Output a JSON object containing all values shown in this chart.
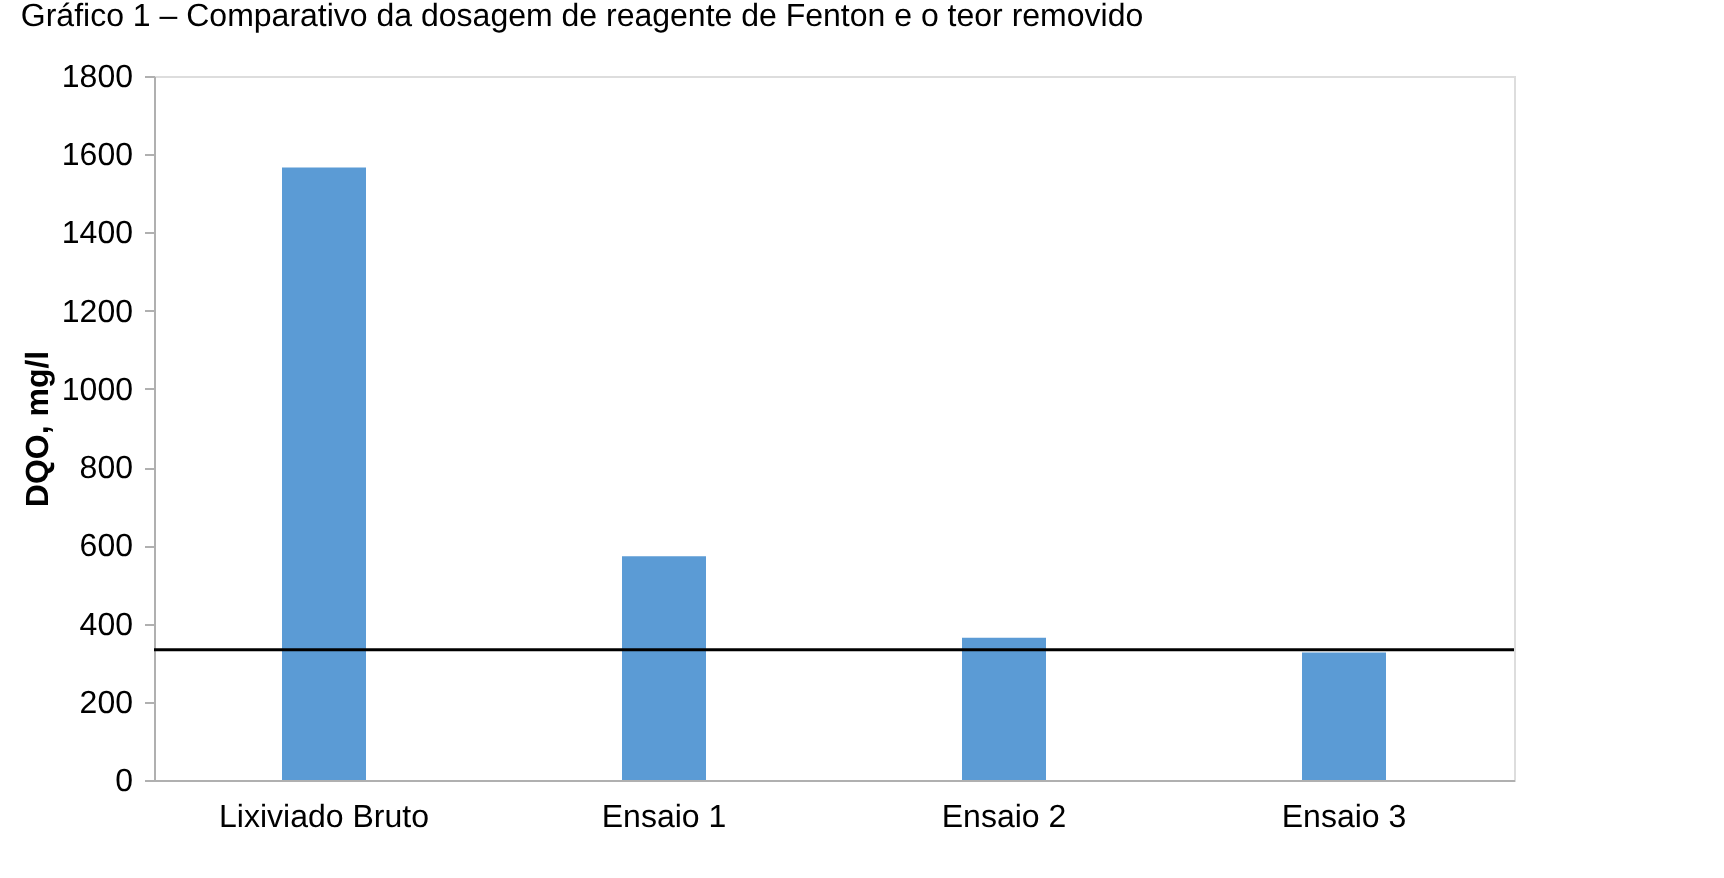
{
  "chart_data": {
    "type": "bar",
    "title": "Gráfico 1 – Comparativo da dosagem de reagente de Fenton e o teor removido",
    "ylabel": "DQO, mg/l",
    "categories": [
      "Lixiviado Bruto",
      "Ensaio 1",
      "Ensaio 2",
      "Ensaio 3"
    ],
    "values": [
      1566,
      572,
      364,
      326
    ],
    "color": "#5b9bd5",
    "ylim": [
      0,
      1800
    ],
    "yticks": [
      0,
      200,
      400,
      600,
      800,
      1000,
      1200,
      1400,
      1600,
      1800
    ],
    "grid": false,
    "ref_lines": [
      {
        "axis": "y",
        "value": 333,
        "color": "#000000"
      }
    ]
  }
}
